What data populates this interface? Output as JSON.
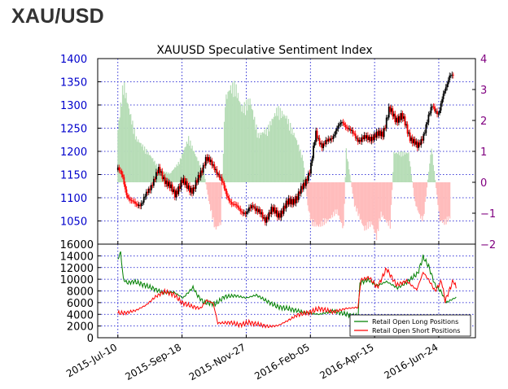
{
  "page": {
    "title": "XAU/USD"
  },
  "chart_data": [
    {
      "type": "candlestick",
      "title": "XAUUSD Speculative Sentiment Index",
      "left_axis": {
        "range": [
          1000,
          1400
        ],
        "ticks": [
          1050,
          1100,
          1150,
          1200,
          1250,
          1300,
          1350,
          1400
        ],
        "tick_labels": [
          "1050",
          "1100",
          "1150",
          "1200",
          "1250",
          "1300",
          "1350",
          "1400"
        ],
        "color": "#0000cc"
      },
      "right_axis": {
        "range": [
          -2,
          4
        ],
        "ticks": [
          -2,
          -1,
          0,
          1,
          2,
          3,
          4
        ],
        "tick_labels": [
          "−2",
          "−1",
          "0",
          "1",
          "2",
          "3",
          "4"
        ],
        "color": "#800080"
      },
      "x_range": [
        "2015-06-18",
        "2016-08-03"
      ],
      "x_ticks": [
        "2015-07-10",
        "2015-09-18",
        "2015-11-27",
        "2016-02-05",
        "2016-04-15",
        "2016-06-24"
      ],
      "x_tick_labels": [
        "2015-Jul-10",
        "2015-Sep-18",
        "2015-Nov-27",
        "2016-Feb-05",
        "2016-Apr-15",
        "2016-Jun-24"
      ],
      "grid": true,
      "price_anchors": [
        [
          "2015-07-10",
          1160
        ],
        [
          "2015-07-15",
          1148
        ],
        [
          "2015-07-20",
          1105
        ],
        [
          "2015-07-24",
          1090
        ],
        [
          "2015-08-05",
          1086
        ],
        [
          "2015-08-12",
          1115
        ],
        [
          "2015-08-24",
          1160
        ],
        [
          "2015-09-01",
          1133
        ],
        [
          "2015-09-10",
          1108
        ],
        [
          "2015-09-18",
          1135
        ],
        [
          "2015-09-30",
          1115
        ],
        [
          "2015-10-05",
          1137
        ],
        [
          "2015-10-14",
          1185
        ],
        [
          "2015-10-24",
          1165
        ],
        [
          "2015-10-30",
          1140
        ],
        [
          "2015-11-05",
          1110
        ],
        [
          "2015-11-12",
          1085
        ],
        [
          "2015-11-20",
          1076
        ],
        [
          "2015-11-27",
          1064
        ],
        [
          "2015-12-04",
          1085
        ],
        [
          "2015-12-10",
          1072
        ],
        [
          "2015-12-17",
          1050
        ],
        [
          "2015-12-24",
          1075
        ],
        [
          "2016-01-01",
          1062
        ],
        [
          "2016-01-12",
          1090
        ],
        [
          "2016-01-22",
          1100
        ],
        [
          "2016-02-05",
          1160
        ],
        [
          "2016-02-11",
          1240
        ],
        [
          "2016-02-18",
          1210
        ],
        [
          "2016-03-01",
          1235
        ],
        [
          "2016-03-11",
          1265
        ],
        [
          "2016-03-20",
          1242
        ],
        [
          "2016-03-29",
          1225
        ],
        [
          "2016-04-05",
          1228
        ],
        [
          "2016-04-15",
          1232
        ],
        [
          "2016-04-24",
          1240
        ],
        [
          "2016-05-01",
          1290
        ],
        [
          "2016-05-08",
          1270
        ],
        [
          "2016-05-15",
          1275
        ],
        [
          "2016-05-24",
          1230
        ],
        [
          "2016-06-01",
          1208
        ],
        [
          "2016-06-08",
          1240
        ],
        [
          "2016-06-17",
          1300
        ],
        [
          "2016-06-24",
          1280
        ],
        [
          "2016-06-29",
          1320
        ],
        [
          "2016-07-06",
          1368
        ],
        [
          "2016-07-11",
          1360
        ]
      ],
      "sentiment_bars": [
        [
          "2015-07-10",
          1.8
        ],
        [
          "2015-07-16",
          3.4
        ],
        [
          "2015-07-22",
          2.5
        ],
        [
          "2015-07-30",
          1.5
        ],
        [
          "2015-08-07",
          1.2
        ],
        [
          "2015-08-17",
          0.8
        ],
        [
          "2015-08-25",
          0.4
        ],
        [
          "2015-09-05",
          0.3
        ],
        [
          "2015-09-15",
          0.7
        ],
        [
          "2015-09-25",
          1.5
        ],
        [
          "2015-10-03",
          0.9
        ],
        [
          "2015-10-12",
          0.3
        ],
        [
          "2015-10-18",
          -0.8
        ],
        [
          "2015-10-24",
          -1.6
        ],
        [
          "2015-10-30",
          -1.4
        ],
        [
          "2015-11-04",
          2.8
        ],
        [
          "2015-11-09",
          3.2
        ],
        [
          "2015-11-15",
          3.3
        ],
        [
          "2015-11-22",
          2.5
        ],
        [
          "2015-12-01",
          2.8
        ],
        [
          "2015-12-10",
          1.6
        ],
        [
          "2015-12-20",
          1.8
        ],
        [
          "2015-12-31",
          2.5
        ],
        [
          "2016-01-10",
          2.2
        ],
        [
          "2016-01-20",
          1.5
        ],
        [
          "2016-01-28",
          0.8
        ],
        [
          "2016-02-02",
          -0.8
        ],
        [
          "2016-02-06",
          -1.4
        ],
        [
          "2016-02-14",
          -1.5
        ],
        [
          "2016-02-24",
          -1.3
        ],
        [
          "2016-03-05",
          -1.0
        ],
        [
          "2016-03-12",
          -1.6
        ],
        [
          "2016-03-15",
          1.1
        ],
        [
          "2016-03-24",
          -0.8
        ],
        [
          "2016-04-04",
          -1.6
        ],
        [
          "2016-04-12",
          -1.4
        ],
        [
          "2016-04-17",
          -1.9
        ],
        [
          "2016-04-22",
          -1.1
        ],
        [
          "2016-05-02",
          -1.5
        ],
        [
          "2016-05-06",
          1.0
        ],
        [
          "2016-05-14",
          1.0
        ],
        [
          "2016-05-22",
          1.0
        ],
        [
          "2016-05-29",
          -0.7
        ],
        [
          "2016-06-04",
          -1.2
        ],
        [
          "2016-06-07",
          -1.3
        ],
        [
          "2016-06-16",
          1.2
        ],
        [
          "2016-06-25",
          -1.3
        ],
        [
          "2016-07-01",
          -1.4
        ],
        [
          "2016-07-06",
          -1.2
        ]
      ],
      "colors": {
        "up": "#000000",
        "down": "#ff0000",
        "positive": "#b7ddb7",
        "negative": "#ffbcbc",
        "grid": "#0000cc",
        "axes": "#000000"
      }
    },
    {
      "type": "line",
      "y_range": [
        0,
        16000
      ],
      "ticks": [
        0,
        2000,
        4000,
        6000,
        8000,
        10000,
        12000,
        14000,
        16000
      ],
      "tick_labels": [
        "0",
        "2000",
        "4000",
        "6000",
        "8000",
        "10000",
        "12000",
        "14000",
        "16000"
      ],
      "grid": true,
      "legend_position": "bottom-right",
      "series": [
        {
          "name": "Retail Open Long Positions",
          "color": "#008000",
          "points": [
            [
              "2015-07-10",
              13400
            ],
            [
              "2015-07-13",
              14600
            ],
            [
              "2015-07-16",
              10000
            ],
            [
              "2015-07-20",
              9400
            ],
            [
              "2015-07-28",
              9600
            ],
            [
              "2015-08-08",
              9000
            ],
            [
              "2015-08-18",
              8400
            ],
            [
              "2015-08-28",
              7700
            ],
            [
              "2015-09-09",
              7800
            ],
            [
              "2015-09-19",
              6800
            ],
            [
              "2015-09-30",
              8600
            ],
            [
              "2015-10-05",
              7200
            ],
            [
              "2015-10-12",
              6000
            ],
            [
              "2015-10-25",
              5800
            ],
            [
              "2015-11-03",
              7000
            ],
            [
              "2015-11-15",
              7200
            ],
            [
              "2015-11-27",
              6800
            ],
            [
              "2015-12-08",
              7300
            ],
            [
              "2015-12-18",
              6400
            ],
            [
              "2015-12-31",
              5300
            ],
            [
              "2016-01-11",
              5000
            ],
            [
              "2016-01-22",
              4600
            ],
            [
              "2016-02-03",
              4200
            ],
            [
              "2016-02-15",
              4000
            ],
            [
              "2016-03-01",
              4600
            ],
            [
              "2016-03-15",
              4000
            ],
            [
              "2016-03-28",
              3600
            ],
            [
              "2016-03-30",
              9400
            ],
            [
              "2016-04-08",
              9900
            ],
            [
              "2016-04-18",
              8900
            ],
            [
              "2016-04-28",
              9600
            ],
            [
              "2016-05-10",
              8500
            ],
            [
              "2016-05-21",
              9600
            ],
            [
              "2016-06-01",
              11000
            ],
            [
              "2016-06-07",
              13800
            ],
            [
              "2016-06-13",
              12200
            ],
            [
              "2016-06-20",
              9000
            ],
            [
              "2016-06-27",
              7800
            ],
            [
              "2016-07-02",
              6000
            ],
            [
              "2016-07-08",
              6500
            ],
            [
              "2016-07-13",
              6900
            ]
          ]
        },
        {
          "name": "Retail Open Short Positions",
          "color": "#ff0000",
          "points": [
            [
              "2015-07-10",
              4200
            ],
            [
              "2015-07-20",
              4300
            ],
            [
              "2015-07-30",
              4700
            ],
            [
              "2015-08-10",
              5600
            ],
            [
              "2015-08-20",
              7000
            ],
            [
              "2015-08-30",
              7900
            ],
            [
              "2015-09-09",
              7400
            ],
            [
              "2015-09-18",
              6000
            ],
            [
              "2015-09-28",
              5400
            ],
            [
              "2015-10-08",
              5000
            ],
            [
              "2015-10-15",
              6400
            ],
            [
              "2015-10-22",
              5900
            ],
            [
              "2015-10-27",
              2500
            ],
            [
              "2015-11-10",
              2600
            ],
            [
              "2015-11-20",
              2200
            ],
            [
              "2015-11-30",
              2600
            ],
            [
              "2015-12-10",
              2300
            ],
            [
              "2015-12-22",
              1900
            ],
            [
              "2016-01-01",
              2100
            ],
            [
              "2016-01-11",
              2900
            ],
            [
              "2016-01-22",
              3900
            ],
            [
              "2016-02-03",
              4300
            ],
            [
              "2016-02-15",
              5000
            ],
            [
              "2016-03-01",
              4400
            ],
            [
              "2016-03-15",
              5000
            ],
            [
              "2016-03-28",
              5200
            ],
            [
              "2016-03-31",
              9900
            ],
            [
              "2016-04-09",
              10300
            ],
            [
              "2016-04-18",
              8600
            ],
            [
              "2016-04-28",
              11800
            ],
            [
              "2016-05-09",
              9000
            ],
            [
              "2016-05-20",
              9700
            ],
            [
              "2016-05-31",
              8200
            ],
            [
              "2016-06-07",
              11200
            ],
            [
              "2016-06-13",
              9900
            ],
            [
              "2016-06-20",
              8000
            ],
            [
              "2016-06-27",
              9700
            ],
            [
              "2016-07-01",
              6300
            ],
            [
              "2016-07-07",
              8700
            ],
            [
              "2016-07-10",
              9800
            ],
            [
              "2016-07-13",
              8500
            ]
          ]
        }
      ]
    }
  ]
}
